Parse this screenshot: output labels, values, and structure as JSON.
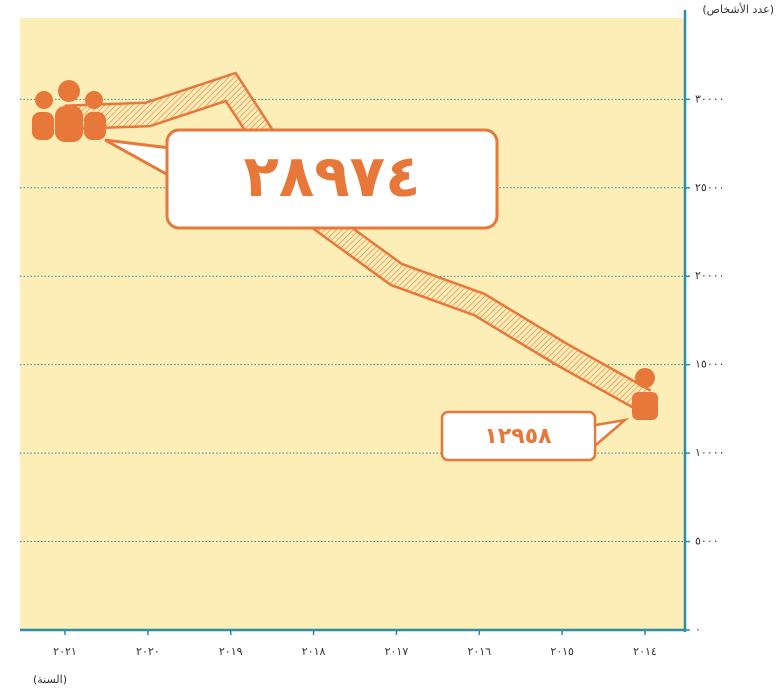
{
  "chart_data": {
    "type": "line",
    "y_label": "(عدد الأشخاص)",
    "x_label": "(السنة)",
    "categories": [
      "٢٠٢١",
      "٢٠٢٠",
      "٢٠١٩",
      "٢٠١٨",
      "٢٠١٧",
      "٢٠١٦",
      "٢٠١٥",
      "٢٠١٤"
    ],
    "values": [
      28974,
      29150,
      30700,
      23500,
      20100,
      18400,
      15570,
      12958
    ],
    "value_labels": [
      "٢٨٩٧٤",
      null,
      null,
      null,
      null,
      null,
      null,
      "١٢٩٥٨"
    ],
    "color": "#e8773a",
    "ylim": [
      0,
      34600
    ],
    "yticks": [
      {
        "value": 0,
        "label": "٠"
      },
      {
        "value": 5000,
        "label": "٥٠٠٠"
      },
      {
        "value": 10000,
        "label": "١٠٠٠٠"
      },
      {
        "value": 15000,
        "label": "١٥٠٠٠"
      },
      {
        "value": 20000,
        "label": "٢٠٠٠٠"
      },
      {
        "value": 25000,
        "label": "٢٥٠٠٠"
      },
      {
        "value": 30000,
        "label": "٣٠٠٠٠"
      }
    ],
    "grid": true
  }
}
